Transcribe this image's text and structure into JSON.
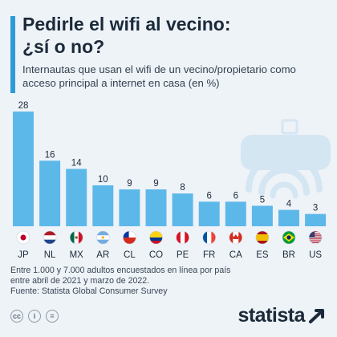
{
  "title_line1": "Pedirle el wifi al vecino:",
  "title_line2": "¿sí o no?",
  "subtitle": "Internautas que usan el wifi de un vecino/propietario como acceso principal a internet en casa (en %)",
  "footnote_line1": "Entre 1.000 y 7.000 adultos encuestados en línea por país",
  "footnote_line2": "entre abril de 2021 y marzo de 2022.",
  "source": "Fuente: Statista Global Consumer Survey",
  "brand": "statista",
  "colors": {
    "bar": "#5db8ea",
    "accent": "#2e9bd6",
    "illustration": "#d5e6f3"
  },
  "chart_data": {
    "type": "bar",
    "categories": [
      "JP",
      "NL",
      "MX",
      "AR",
      "CL",
      "CO",
      "PE",
      "FR",
      "CA",
      "ES",
      "BR",
      "US"
    ],
    "values": [
      28,
      16,
      14,
      10,
      9,
      9,
      8,
      6,
      6,
      5,
      4,
      3
    ],
    "flags": [
      "japan",
      "netherlands",
      "mexico",
      "argentina",
      "chile",
      "colombia",
      "peru",
      "france",
      "canada",
      "spain",
      "brazil",
      "usa"
    ],
    "title": "Pedirle el wifi al vecino: ¿sí o no?",
    "ylabel": "",
    "ylim": [
      0,
      28
    ],
    "grid": false,
    "legend": "none"
  }
}
